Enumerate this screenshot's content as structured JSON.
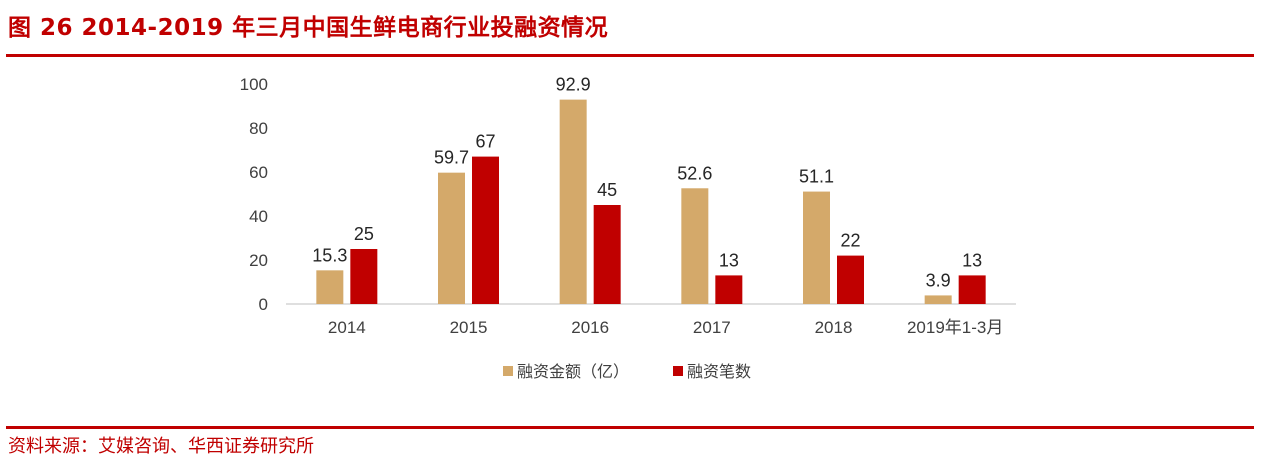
{
  "header": {
    "title": "图 26  2014-2019 年三月中国生鲜电商行业投融资情况"
  },
  "footer": {
    "source": "资料来源：艾媒咨询、华西证券研究所"
  },
  "colors": {
    "accent": "#c00000",
    "series_amount": "#d4a96a",
    "series_count": "#c00000"
  },
  "chart_data": {
    "type": "bar",
    "title": "",
    "xlabel": "",
    "ylabel": "",
    "categories": [
      "2014",
      "2015",
      "2016",
      "2017",
      "2018",
      "2019年1-3月"
    ],
    "ylim": [
      0,
      100
    ],
    "yticks": [
      0,
      20,
      40,
      60,
      80,
      100
    ],
    "grid": false,
    "legend_position": "bottom",
    "series": [
      {
        "name": "融资金额（亿）",
        "values": [
          15.3,
          59.7,
          92.9,
          52.6,
          51.1,
          3.9
        ],
        "color": "#d4a96a"
      },
      {
        "name": "融资笔数",
        "values": [
          25,
          67,
          45,
          13,
          22,
          13
        ],
        "color": "#c00000"
      }
    ]
  }
}
